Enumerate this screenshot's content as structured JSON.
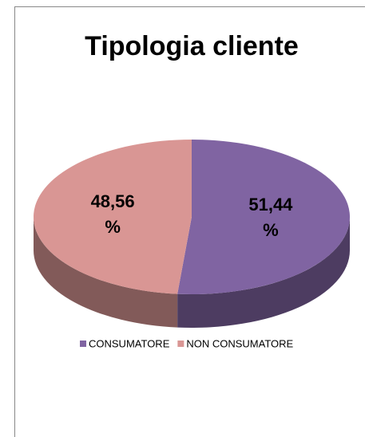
{
  "chart_data": {
    "type": "pie3d",
    "title": "Tipologia cliente",
    "categories": [
      "CONSUMATORE",
      "NON CONSUMATORE"
    ],
    "values": [
      51.44,
      48.56
    ],
    "value_labels": [
      "51,44 %",
      "48,56 %"
    ],
    "colors": [
      "#8064a2",
      "#d99694"
    ],
    "legend": "bottom"
  }
}
